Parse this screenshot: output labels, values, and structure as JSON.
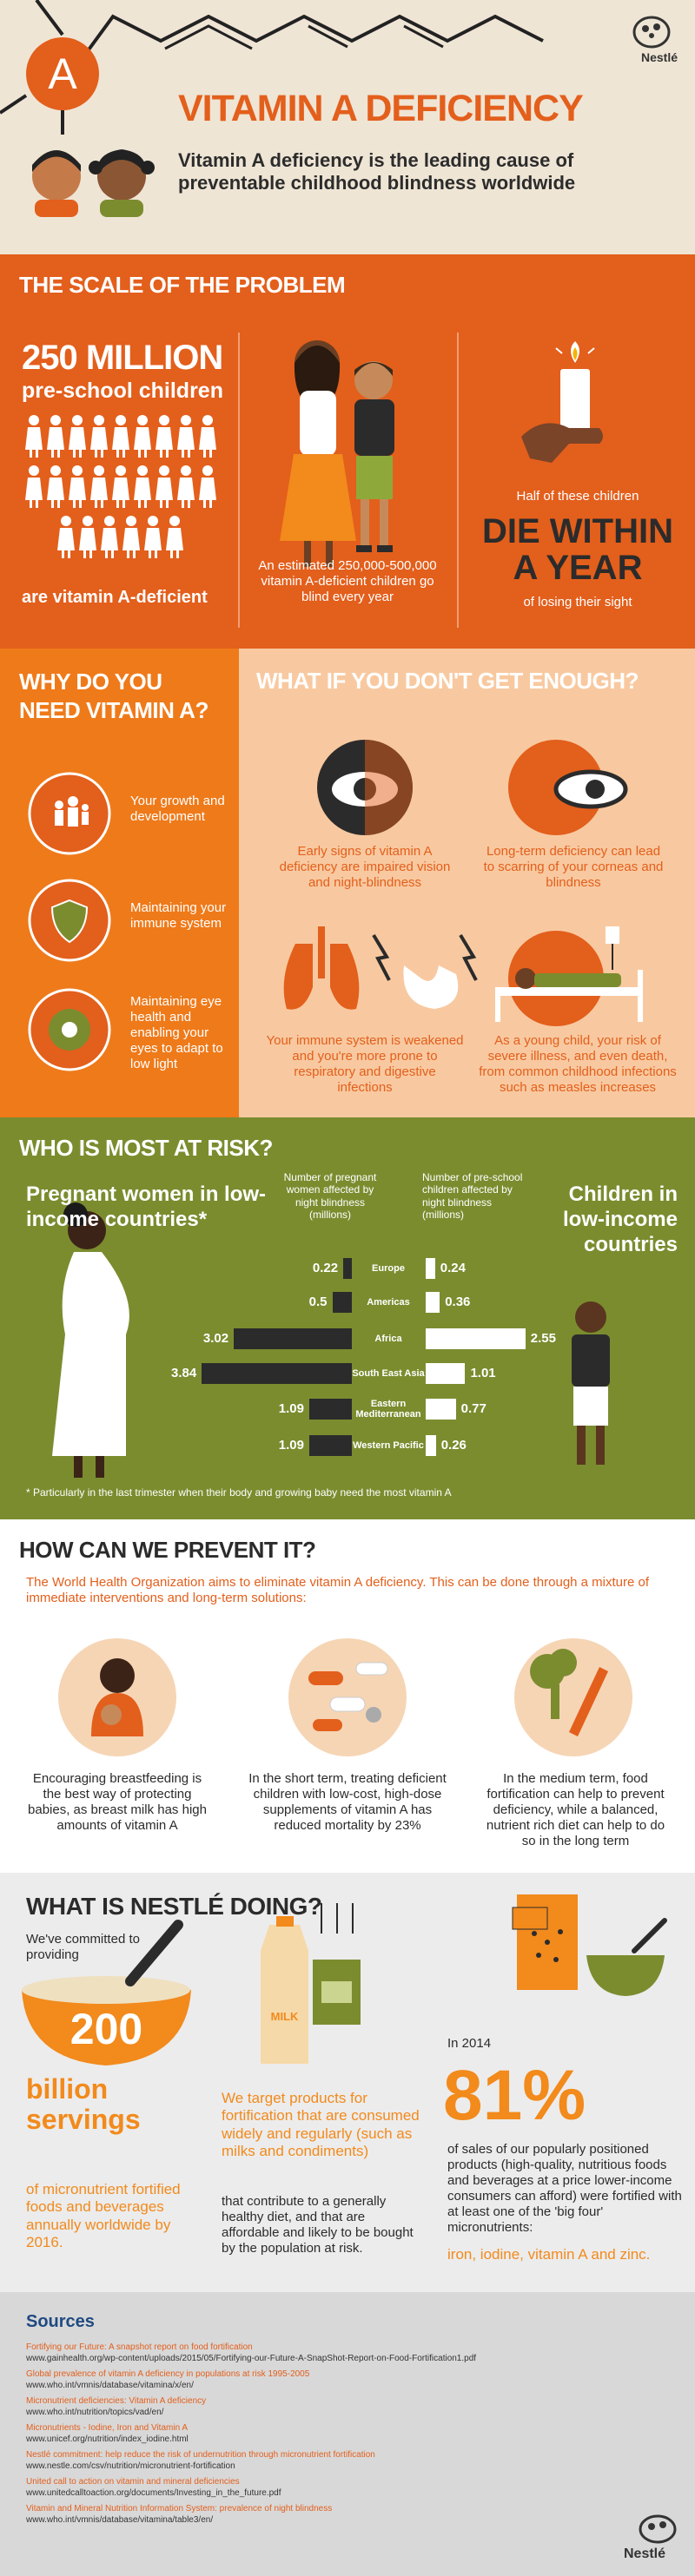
{
  "header": {
    "letter": "A",
    "brand": "Nestlé",
    "title": "VITAMIN A DEFICIENCY",
    "subtitle": "Vitamin A deficiency is the leading cause of preventable childhood blindness worldwide"
  },
  "scale": {
    "heading": "THE SCALE OF THE PROBLEM",
    "stat": "250 MILLION",
    "stat_sub": "pre-school children",
    "stat_foot": "are vitamin A-deficient",
    "blind_text": "An estimated 250,000-500,000 vitamin A-deficient children go blind every year",
    "half_text": "Half of these children",
    "die_text": "DIE WITHIN A YEAR",
    "die_foot": "of losing their sight"
  },
  "why": {
    "heading": "WHY DO YOU NEED VITAMIN A?",
    "items": [
      "Your growth and development",
      "Maintaining your immune system",
      "Maintaining eye health and enabling your eyes to adapt to low light"
    ]
  },
  "what_if": {
    "heading": "WHAT IF YOU DON'T GET ENOUGH?",
    "items": [
      "Early signs of vitamin A deficiency are impaired vision and night-blindness",
      "Long-term deficiency can lead to scarring of your corneas and blindness",
      "Your immune system is weakened and you're more prone to respiratory and digestive infections",
      "As a young child, your risk of severe illness, and even death, from common childhood infections such as measles increases"
    ]
  },
  "risk": {
    "heading": "WHO IS MOST AT RISK?",
    "left_label": "Pregnant women in low-income countries*",
    "right_label": "Children in low-income countries",
    "left_axis_label": "Number of pregnant women affected by night blindness (millions)",
    "right_axis_label": "Number of pre-school children affected by night blindness (millions)",
    "regions": [
      "Europe",
      "Americas",
      "Africa",
      "South East Asia",
      "Eastern Mediterranean",
      "Western Pacific"
    ],
    "pregnant": [
      0.22,
      0.5,
      3.02,
      3.84,
      1.09,
      1.09
    ],
    "children": [
      0.24,
      0.36,
      2.55,
      1.01,
      0.77,
      0.26
    ],
    "footnote": "* Particularly in the last trimester when their body and growing baby need the most vitamin A"
  },
  "prevent": {
    "heading": "HOW CAN WE PREVENT IT?",
    "intro": "The World Health Organization aims to eliminate vitamin A deficiency. This can be done through a mixture of immediate interventions and long-term solutions:",
    "items": [
      "Encouraging breastfeeding is the best way of protecting babies, as breast milk has high amounts of vitamin A",
      "In the short term, treating deficient children with low-cost, high-dose supplements of vitamin A has reduced mortality by 23%",
      "In the medium term, food fortification can help to prevent deficiency, while a balanced, nutrient rich diet can help to do so in the long term"
    ]
  },
  "nestle": {
    "heading": "WHAT IS NESTLÉ DOING?",
    "committed": "We've committed to providing",
    "number": "200",
    "servings": "billion servings",
    "servings_text": "of micronutrient fortified foods and beverages annually worldwide by 2016.",
    "milk": "MILK",
    "target": "We target products for fortification that are consumed widely and regularly (such as milks and condiments)",
    "target2": "that contribute to a generally healthy diet, and that are affordable and likely to be bought by the population at risk.",
    "year": "In 2014",
    "pct": "81%",
    "pct_text": "of sales of our popularly positioned products (high-quality, nutritious foods and beverages at a price lower-income consumers can afford) were fortified with at least one of the 'big four' micronutrients:",
    "micronutrients": "iron, iodine, vitamin A and zinc."
  },
  "sources": {
    "heading": "Sources",
    "brand": "Nestlé",
    "items": [
      {
        "title": "Fortifying our Future: A snapshot report on food fortification",
        "url": "www.gainhealth.org/wp-content/uploads/2015/05/Fortifying-our-Future-A-SnapShot-Report-on-Food-Fortification1.pdf"
      },
      {
        "title": "Global prevalence of vitamin A deficiency in populations at risk 1995-2005",
        "url": "www.who.int/vmnis/database/vitamina/x/en/"
      },
      {
        "title": "Micronutrient deficiencies: Vitamin A deficiency",
        "url": "www.who.int/nutrition/topics/vad/en/"
      },
      {
        "title": "Micronutrients - Iodine, Iron and Vitamin A",
        "url": "www.unicef.org/nutrition/index_iodine.html"
      },
      {
        "title": "Nestlé commitment: help reduce the risk of undernutrition through micronutrient fortification",
        "url": "www.nestle.com/csv/nutrition/micronutrient-fortification"
      },
      {
        "title": "United call to action on vitamin and mineral deficiencies",
        "url": "www.unitedcalltoaction.org/documents/Investing_in_the_future.pdf"
      },
      {
        "title": "Vitamin and Mineral Nutrition Information System: prevalence of night blindness",
        "url": "www.who.int/vmnis/database/vitamina/table3/en/"
      }
    ]
  }
}
